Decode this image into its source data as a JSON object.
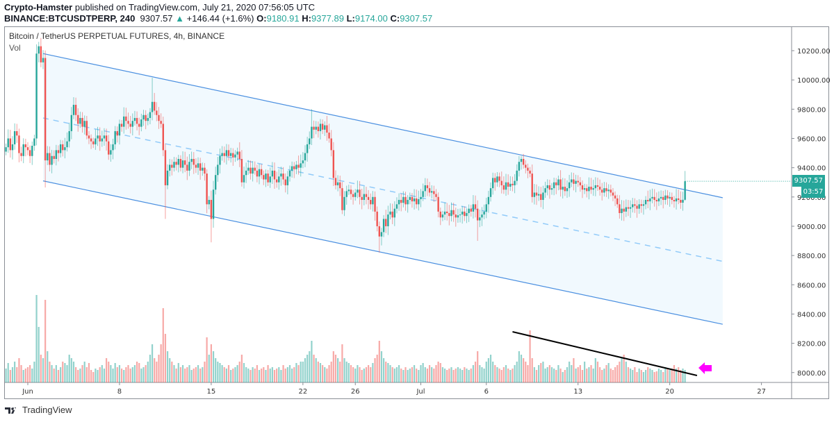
{
  "header": {
    "author": "Crypto-Hamster",
    "published": "published on TradingView.com, July 21, 2020 07:56:05 UTC",
    "symbol": "BINANCE:BTCUSDTPERP, 240",
    "last": "9307.57",
    "change": "+146.44 (+1.6%)",
    "o_label": "O:",
    "o": "9180.91",
    "h_label": "H:",
    "h": "9377.89",
    "l_label": "L:",
    "l": "9174.00",
    "c_label": "C:",
    "c": "9307.57"
  },
  "legend": {
    "title": "Bitcoin / TetherUS PERPETUAL FUTURES, 4h, BINANCE",
    "volume": "Vol"
  },
  "price_label": "9307.57",
  "countdown": "03:57",
  "footer": {
    "logo": "TradingView"
  },
  "colors": {
    "up": "#26a69a",
    "down": "#ef5350",
    "channel": "#4a8fe0",
    "channel_fill": "#f1f9fe",
    "midline": "#90caf9",
    "arrow": "#ff00ff",
    "trendline": "#000000"
  },
  "chart_data": {
    "type": "candlestick",
    "interval": "4h",
    "first_candle": "2020-05-30 08:00",
    "ylim": [
      7920,
      10340
    ],
    "price_ticks": [
      "10200.00",
      "10000.00",
      "9800.00",
      "9600.00",
      "9400.00",
      "9200.00",
      "9000.00",
      "8800.00",
      "8600.00",
      "8400.00",
      "8200.00",
      "8000.00"
    ],
    "x_ticks": [
      {
        "label": "Jun",
        "day": 0
      },
      {
        "label": "8",
        "day": 7
      },
      {
        "label": "15",
        "day": 14
      },
      {
        "label": "22",
        "day": 21
      },
      {
        "label": "26",
        "day": 25
      },
      {
        "label": "Jul",
        "day": 30
      },
      {
        "label": "6",
        "day": 35
      },
      {
        "label": "13",
        "day": 42
      },
      {
        "label": "20",
        "day": 49
      },
      {
        "label": "27",
        "day": 56
      }
    ],
    "closes": [
      9540,
      9600,
      9520,
      9560,
      9650,
      9620,
      9500,
      9480,
      9560,
      9540,
      9520,
      9480,
      9550,
      9600,
      10180,
      10230,
      10120,
      10150,
      9450,
      9500,
      9420,
      9480,
      9460,
      9520,
      9500,
      9560,
      9520,
      9540,
      9580,
      9650,
      9760,
      9830,
      9760,
      9700,
      9740,
      9680,
      9720,
      9620,
      9600,
      9580,
      9560,
      9600,
      9620,
      9580,
      9600,
      9620,
      9580,
      9490,
      9520,
      9560,
      9650,
      9620,
      9700,
      9680,
      9750,
      9720,
      9700,
      9680,
      9720,
      9740,
      9700,
      9680,
      9730,
      9760,
      9720,
      9740,
      9780,
      9850,
      9790,
      9760,
      9720,
      9700,
      9520,
      9280,
      9380,
      9420,
      9400,
      9440,
      9420,
      9460,
      9400,
      9450,
      9420,
      9380,
      9440,
      9460,
      9420,
      9400,
      9430,
      9380,
      9400,
      9360,
      9150,
      9180,
      9050,
      9250,
      9350,
      9420,
      9480,
      9500,
      9480,
      9520,
      9480,
      9500,
      9470,
      9490,
      9510,
      9460,
      9300,
      9350,
      9380,
      9400,
      9360,
      9400,
      9380,
      9340,
      9390,
      9350,
      9320,
      9360,
      9300,
      9340,
      9380,
      9320,
      9300,
      9340,
      9360,
      9320,
      9280,
      9340,
      9380,
      9410,
      9390,
      9420,
      9400,
      9430,
      9450,
      9500,
      9560,
      9600,
      9680,
      9660,
      9680,
      9650,
      9700,
      9660,
      9690,
      9640,
      9600,
      9520,
      9330,
      9280,
      9300,
      9260,
      9110,
      9200,
      9240,
      9250,
      9220,
      9200,
      9230,
      9250,
      9200,
      9180,
      9220,
      9200,
      9180,
      9150,
      9200,
      9100,
      9000,
      8930,
      8960,
      9050,
      9000,
      9080,
      9100,
      9060,
      9120,
      9150,
      9180,
      9160,
      9200,
      9150,
      9180,
      9200,
      9170,
      9190,
      9150,
      9185,
      9200,
      9240,
      9280,
      9260,
      9230,
      9240,
      9220,
      9200,
      9100,
      9060,
      9080,
      9100,
      9090,
      9070,
      9110,
      9080,
      9060,
      9075,
      9080,
      9100,
      9070,
      9090,
      9120,
      9100,
      9150,
      9120,
      9040,
      9060,
      9080,
      9100,
      9150,
      9200,
      9260,
      9330,
      9300,
      9340,
      9310,
      9280,
      9250,
      9300,
      9270,
      9290,
      9280,
      9310,
      9380,
      9440,
      9460,
      9420,
      9400,
      9380,
      9360,
      9200,
      9230,
      9210,
      9220,
      9180,
      9230,
      9260,
      9280,
      9250,
      9260,
      9300,
      9280,
      9320,
      9250,
      9270,
      9240,
      9260,
      9300,
      9320,
      9290,
      9310,
      9300,
      9280,
      9250,
      9260,
      9240,
      9270,
      9250,
      9260,
      9280,
      9270,
      9250,
      9230,
      9260,
      9240,
      9250,
      9230,
      9210,
      9190,
      9150,
      9090,
      9120,
      9100,
      9130,
      9120,
      9130,
      9150,
      9140,
      9120,
      9150,
      9140,
      9150,
      9180,
      9170,
      9190,
      9200,
      9180,
      9170,
      9190,
      9200,
      9180,
      9210,
      9190,
      9200,
      9180,
      9170,
      9190,
      9180,
      9161,
      9180.91,
      9307.57
    ],
    "wicks": [
      {
        "candle": 15,
        "high": 10260
      },
      {
        "candle": 18,
        "low": 9265
      },
      {
        "candle": 67,
        "high": 10015
      },
      {
        "candle": 73,
        "low": 9050
      },
      {
        "candle": 94,
        "low": 8890
      },
      {
        "candle": 140,
        "high": 9800
      },
      {
        "candle": 171,
        "low": 8820
      },
      {
        "candle": 216,
        "low": 8900
      },
      {
        "candle": 236,
        "high": 9480
      },
      {
        "candle": 311,
        "high": 9377.89,
        "low": 9174.0
      }
    ],
    "volume_relative": [
      20,
      28,
      18,
      22,
      30,
      22,
      35,
      25,
      18,
      20,
      22,
      25,
      20,
      30,
      126,
      80,
      40,
      35,
      119,
      45,
      30,
      25,
      20,
      25,
      18,
      22,
      30,
      28,
      25,
      40,
      35,
      30,
      22,
      18,
      20,
      25,
      30,
      22,
      28,
      18,
      15,
      20,
      18,
      22,
      25,
      20,
      35,
      30,
      25,
      20,
      28,
      22,
      25,
      20,
      18,
      22,
      25,
      20,
      22,
      25,
      30,
      28,
      20,
      22,
      25,
      30,
      40,
      55,
      35,
      30,
      40,
      55,
      107,
      70,
      45,
      35,
      30,
      25,
      20,
      28,
      22,
      25,
      20,
      22,
      25,
      18,
      20,
      22,
      25,
      20,
      22,
      30,
      65,
      40,
      55,
      45,
      35,
      30,
      28,
      25,
      22,
      20,
      25,
      18,
      20,
      22,
      25,
      30,
      40,
      28,
      22,
      20,
      18,
      22,
      20,
      25,
      18,
      20,
      22,
      18,
      25,
      20,
      22,
      18,
      20,
      22,
      18,
      25,
      20,
      22,
      25,
      20,
      22,
      28,
      25,
      30,
      30,
      35,
      40,
      45,
      60,
      40,
      35,
      30,
      28,
      25,
      22,
      20,
      25,
      30,
      45,
      40,
      35,
      30,
      55,
      35,
      30,
      28,
      25,
      22,
      20,
      25,
      22,
      18,
      20,
      22,
      25,
      22,
      28,
      35,
      40,
      60,
      45,
      35,
      30,
      28,
      25,
      22,
      20,
      22,
      25,
      20,
      18,
      22,
      18,
      20,
      22,
      25,
      20,
      18,
      25,
      28,
      22,
      20,
      25,
      22,
      20,
      25,
      30,
      28,
      22,
      20,
      18,
      20,
      22,
      18,
      20,
      22,
      20,
      18,
      22,
      20,
      18,
      20,
      25,
      30,
      45,
      25,
      22,
      20,
      30,
      35,
      40,
      30,
      25,
      22,
      20,
      18,
      22,
      25,
      20,
      18,
      20,
      25,
      30,
      45,
      40,
      35,
      30,
      25,
      75,
      35,
      22,
      18,
      25,
      28,
      30,
      20,
      22,
      25,
      22,
      20,
      18,
      25,
      20,
      15,
      18,
      22,
      30,
      25,
      35,
      20,
      22,
      25,
      18,
      30,
      20,
      22,
      25,
      20,
      35,
      30,
      22,
      18,
      20,
      25,
      28,
      20,
      18,
      22,
      25,
      30,
      35,
      40,
      30,
      22,
      20,
      18,
      22,
      15,
      20,
      18,
      15,
      18,
      22,
      20,
      18,
      15,
      16,
      20,
      18,
      15,
      22,
      20,
      18,
      20,
      25,
      20,
      22,
      18,
      20,
      18,
      22,
      15,
      18,
      17,
      15,
      40
    ],
    "channel": {
      "upper": [
        {
          "date": "2020-06-02 04:00",
          "price": 10180
        },
        {
          "date": "2020-07-24 01:00",
          "price": 9195
        }
      ],
      "middle": [
        {
          "date": "2020-06-02 04:00",
          "price": 9740
        },
        {
          "date": "2020-07-24 01:00",
          "price": 8760
        }
      ],
      "lower": [
        {
          "date": "2020-06-02 04:00",
          "price": 9310
        },
        {
          "date": "2020-07-24 01:00",
          "price": 8330
        }
      ]
    },
    "volume_trendline": [
      {
        "date": "2020-07-08 00:00",
        "volume_relative": 73
      },
      {
        "date": "2020-07-22 02:00",
        "volume_relative": 10
      }
    ]
  }
}
